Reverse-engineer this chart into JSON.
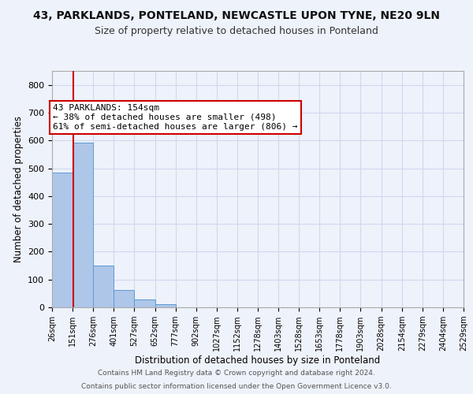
{
  "title": "43, PARKLANDS, PONTELAND, NEWCASTLE UPON TYNE, NE20 9LN",
  "subtitle": "Size of property relative to detached houses in Ponteland",
  "xlabel": "Distribution of detached houses by size in Ponteland",
  "ylabel": "Number of detached properties",
  "bin_edges": [
    26,
    151,
    276,
    401,
    527,
    652,
    777,
    902,
    1027,
    1152,
    1278,
    1403,
    1528,
    1653,
    1778,
    1903,
    2028,
    2154,
    2279,
    2404,
    2529
  ],
  "bar_heights": [
    484,
    592,
    150,
    63,
    29,
    10,
    0,
    0,
    0,
    0,
    0,
    0,
    0,
    0,
    0,
    0,
    0,
    0,
    0,
    0
  ],
  "bar_color": "#aec6e8",
  "bar_edge_color": "#5b9bd5",
  "grid_color": "#d0d8f0",
  "background_color": "#eef2fa",
  "property_line_x": 154,
  "property_line_color": "#cc0000",
  "annotation_text": "43 PARKLANDS: 154sqm\n← 38% of detached houses are smaller (498)\n61% of semi-detached houses are larger (806) →",
  "annotation_box_color": "#ffffff",
  "annotation_box_edge": "#cc0000",
  "ylim": [
    0,
    850
  ],
  "yticks": [
    0,
    100,
    200,
    300,
    400,
    500,
    600,
    700,
    800
  ],
  "footer1": "Contains HM Land Registry data © Crown copyright and database right 2024.",
  "footer2": "Contains public sector information licensed under the Open Government Licence v3.0.",
  "title_fontsize": 10,
  "subtitle_fontsize": 9,
  "ann_fontsize": 8
}
